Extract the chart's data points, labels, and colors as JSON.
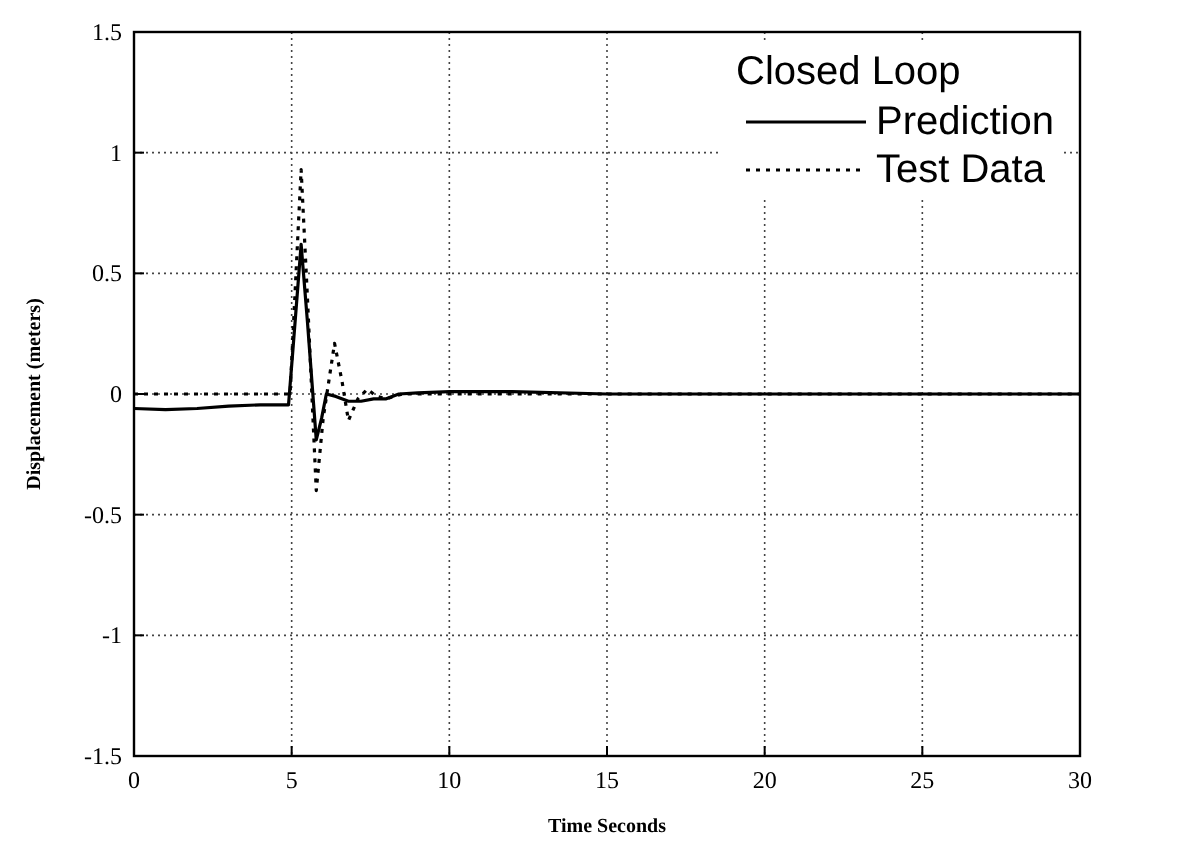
{
  "chart_data": {
    "type": "line",
    "xlabel": "Time Seconds",
    "ylabel": "Displacement (meters)",
    "legend_title": "Closed Loop",
    "xlim": [
      0,
      30
    ],
    "xticks": [
      0,
      5,
      10,
      15,
      20,
      25,
      30
    ],
    "ylim": [
      -1.5,
      1.5
    ],
    "yticks": [
      -1.5,
      -1,
      -0.5,
      0,
      0.5,
      1,
      1.5
    ],
    "grid": true,
    "legend": "top right",
    "series": [
      {
        "name": "Prediction",
        "color": "#000000",
        "line_style": "solid",
        "x": [
          0,
          1,
          2,
          3,
          4,
          4.9,
          5.05,
          5.3,
          5.5,
          5.78,
          5.95,
          6.1,
          6.4,
          6.8,
          7.2,
          7.6,
          8.0,
          8.4,
          9,
          10,
          12,
          15,
          20,
          25,
          30
        ],
        "values": [
          -0.06,
          -0.065,
          -0.06,
          -0.05,
          -0.045,
          -0.045,
          0.2,
          0.62,
          0.3,
          -0.19,
          -0.1,
          0,
          -0.01,
          -0.03,
          -0.03,
          -0.02,
          -0.02,
          0,
          0.005,
          0.01,
          0.01,
          0,
          0,
          0,
          0
        ]
      },
      {
        "name": "Test Data",
        "color": "#000000",
        "line_style": "dotted",
        "x": [
          0,
          2,
          4,
          4.95,
          5.1,
          5.3,
          5.5,
          5.78,
          6.0,
          6.36,
          6.6,
          6.8,
          7.1,
          7.4,
          7.7,
          8.0,
          8.5,
          10,
          15,
          20,
          25,
          30
        ],
        "values": [
          0,
          0,
          0,
          0,
          0.4,
          0.93,
          0.4,
          -0.4,
          -0.1,
          0.21,
          0.05,
          -0.11,
          -0.02,
          0.02,
          -0.01,
          -0.02,
          0,
          0,
          0,
          0,
          0,
          0
        ]
      }
    ]
  }
}
